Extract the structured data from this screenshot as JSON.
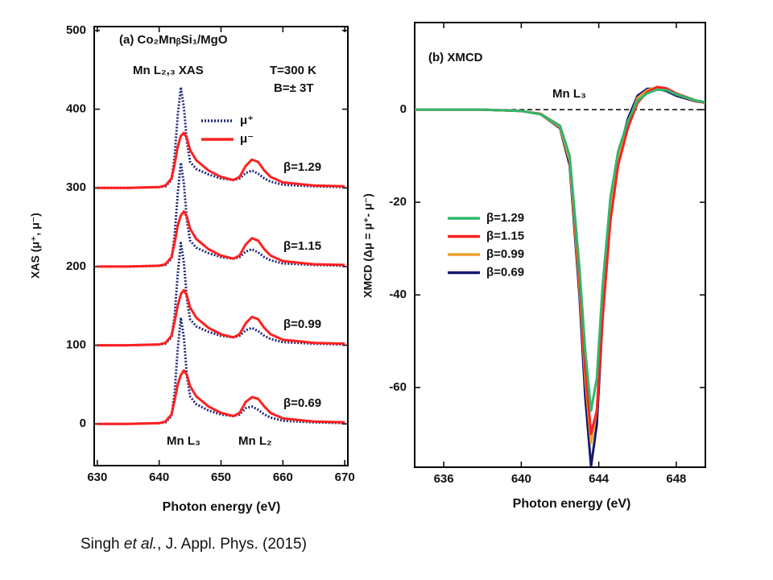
{
  "chart_data": [
    {
      "type": "line",
      "title": "(a) Co₂MnᵦSi₁/MgO",
      "x_label": "Photon energy (eV)",
      "y_label": "XAS (μ⁺, μ⁻)",
      "annotations": [
        "Mn L₂,₃ XAS",
        "T=300 K",
        "B=± 3T",
        "β=1.29",
        "β=1.15",
        "β=0.99",
        "β=0.69",
        "Mn L₃",
        "Mn L₂"
      ],
      "xlim": [
        629.5,
        670.5
      ],
      "ylim": [
        -53,
        505
      ],
      "xticks": [
        630,
        640,
        650,
        660,
        670
      ],
      "yticks": [
        0,
        100,
        200,
        300,
        400,
        500
      ],
      "x": [
        630,
        635,
        640,
        641,
        642,
        642.5,
        643,
        643.5,
        644,
        644.5,
        645,
        646,
        648,
        650,
        652,
        653,
        654,
        655,
        656,
        657,
        658,
        660,
        665,
        670
      ],
      "series": [
        {
          "name": "μ⁺",
          "color": "#1f2a7a",
          "dash": "dotted",
          "values": [
            300,
            300,
            301,
            302,
            310,
            340,
            392,
            428,
            402,
            358,
            333,
            324,
            317,
            312,
            310,
            312,
            319,
            322,
            318,
            312,
            308,
            304,
            302,
            301
          ]
        },
        {
          "name": "μ⁻",
          "color": "#ff2020",
          "dash": "solid",
          "values": [
            300,
            300,
            301,
            303,
            312,
            330,
            352,
            366,
            370,
            363,
            348,
            335,
            322,
            314,
            310,
            314,
            328,
            336,
            333,
            322,
            314,
            307,
            303,
            302
          ]
        },
        {
          "color": "#1f2a7a",
          "dash": "dotted",
          "values": [
            200,
            200,
            201,
            202,
            210,
            240,
            292,
            332,
            305,
            258,
            233,
            224,
            217,
            212,
            210,
            212,
            219,
            222,
            218,
            212,
            208,
            204,
            202,
            201
          ]
        },
        {
          "color": "#ff2020",
          "dash": "solid",
          "values": [
            200,
            200,
            201,
            203,
            212,
            230,
            252,
            265,
            270,
            263,
            248,
            235,
            222,
            214,
            210,
            214,
            228,
            236,
            233,
            222,
            214,
            207,
            203,
            202
          ]
        },
        {
          "color": "#1f2a7a",
          "dash": "dotted",
          "values": [
            100,
            100,
            101,
            102,
            110,
            138,
            190,
            230,
            205,
            158,
            133,
            124,
            117,
            112,
            110,
            112,
            119,
            122,
            118,
            112,
            108,
            104,
            102,
            101
          ]
        },
        {
          "color": "#ff2020",
          "dash": "solid",
          "values": [
            100,
            100,
            101,
            103,
            112,
            130,
            150,
            165,
            170,
            163,
            148,
            135,
            122,
            114,
            110,
            114,
            128,
            136,
            133,
            122,
            114,
            107,
            103,
            102
          ]
        },
        {
          "color": "#1f2a7a",
          "dash": "dotted",
          "values": [
            0,
            0,
            1,
            2,
            10,
            40,
            95,
            135,
            110,
            60,
            35,
            25,
            17,
            12,
            10,
            12,
            20,
            22,
            18,
            12,
            8,
            4,
            2,
            1
          ]
        },
        {
          "color": "#ff2020",
          "dash": "solid",
          "values": [
            0,
            0,
            1,
            3,
            12,
            30,
            50,
            62,
            68,
            62,
            48,
            35,
            22,
            14,
            10,
            14,
            28,
            34,
            32,
            22,
            14,
            7,
            3,
            2
          ]
        }
      ]
    },
    {
      "type": "line",
      "title": "(b)  XMCD",
      "x_label": "Photon energy (eV)",
      "y_label": "XMCD (Δμ = μ⁺- μ⁻)",
      "annotations": [
        "Mn L₃"
      ],
      "hline": 0,
      "xlim": [
        634.5,
        649.5
      ],
      "ylim": [
        -77.2,
        18.8
      ],
      "xticks": [
        636,
        640,
        644,
        648
      ],
      "yticks": [
        -60,
        -40,
        -20,
        0
      ],
      "x": [
        634.5,
        636,
        638,
        640,
        641,
        642,
        642.5,
        643,
        643.3,
        643.6,
        643.9,
        644.2,
        644.6,
        645,
        645.5,
        646,
        646.5,
        647,
        647.5,
        648,
        649,
        649.5
      ],
      "series": [
        {
          "name": "β=1.29",
          "color": "#2fb86e",
          "dash": "solid",
          "values": [
            0,
            0,
            0,
            -0.3,
            -1,
            -3.5,
            -10,
            -34,
            -52,
            -65,
            -58,
            -38,
            -19,
            -9,
            -2.5,
            2,
            3.5,
            4.3,
            4.2,
            3.3,
            2,
            1.6
          ]
        },
        {
          "name": "β=1.15",
          "color": "#ff2020",
          "dash": "solid",
          "values": [
            0,
            0,
            0,
            -0.3,
            -0.9,
            -3.5,
            -10,
            -36,
            -56,
            -70,
            -65,
            -45,
            -24,
            -12,
            -4,
            1.5,
            3.8,
            4.9,
            4.6,
            3.5,
            2,
            1.5
          ]
        },
        {
          "name": "β=0.99",
          "color": "#f0a030",
          "dash": "solid",
          "values": [
            0,
            0,
            0,
            -0.3,
            -1,
            -3.8,
            -11,
            -38,
            -58,
            -72,
            -65,
            -43,
            -22,
            -10.5,
            -3,
            2.5,
            4.2,
            4.8,
            4.4,
            3.3,
            1.9,
            1.5
          ]
        },
        {
          "name": "β=0.69",
          "color": "#16196b",
          "dash": "solid",
          "values": [
            0,
            0,
            0,
            -0.3,
            -1,
            -4,
            -12,
            -40,
            -62,
            -77,
            -68,
            -45,
            -22,
            -10,
            -2,
            3,
            4.5,
            4.5,
            4,
            3,
            1.8,
            1.5
          ]
        }
      ]
    }
  ],
  "citation": {
    "author": "Singh ",
    "etal": "et al.",
    "rest": ", J. Appl. Phys. (2015)"
  }
}
